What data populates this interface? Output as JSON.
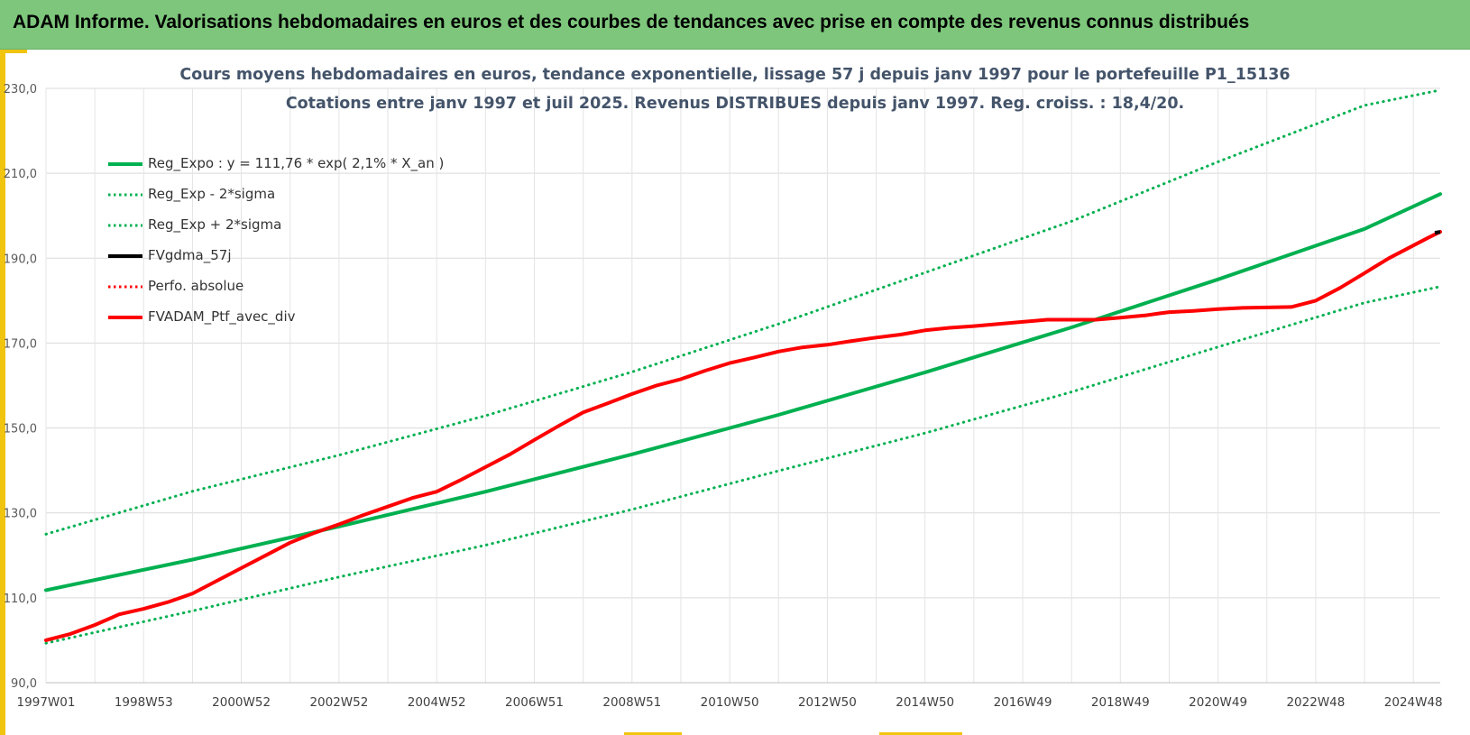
{
  "header": {
    "title": "ADAM Informe. Valorisations hebdomadaires en euros et des courbes de tendances avec prise en compte des revenus connus distribués"
  },
  "colors": {
    "banner": "#7dc67b",
    "accent": "#f1c40f",
    "trend": "#00b050",
    "portfolio": "#ff0000",
    "average": "#000000",
    "grid": "#d9d9d9",
    "title": "#44546a"
  },
  "chart_data": {
    "type": "line",
    "title_line1": "Cours moyens hebdomadaires  en euros, tendance exponentielle, lissage 57 j depuis janv 1997 pour le portefeuille P1_15136",
    "title_line2": "Cotations entre janv 1997 et juil 2025. Revenus DISTRIBUES depuis janv 1997. Reg. croiss. : 18,4/20.",
    "xlabel": "",
    "ylabel": "",
    "x_range": [
      1997.0,
      2025.55
    ],
    "ylim": [
      90,
      230
    ],
    "y_ticks": [
      90,
      110,
      130,
      150,
      170,
      190,
      210,
      230
    ],
    "y_tick_labels": [
      "90,0",
      "110,0",
      "130,0",
      "150,0",
      "170,0",
      "190,0",
      "210,0",
      "230,0"
    ],
    "x_ticks": [
      1997.0,
      1999.0,
      2001.0,
      2003.0,
      2005.0,
      2007.0,
      2009.0,
      2011.0,
      2013.0,
      2015.0,
      2017.0,
      2019.0,
      2021.0,
      2023.0,
      2025.0
    ],
    "x_tick_labels": [
      "1997W01",
      "1998W53",
      "2000W52",
      "2002W52",
      "2004W52",
      "2006W51",
      "2008W51",
      "2010W50",
      "2012W50",
      "2014W50",
      "2016W49",
      "2018W49",
      "2020W49",
      "2022W48",
      "2024W48"
    ],
    "grid": true,
    "legend_position": "top-left",
    "legend": [
      {
        "label": "Reg_Expo : y = 111,76 * exp( 2,1% *  X_an )",
        "color": "#00b050",
        "style": "solid"
      },
      {
        "label": "Reg_Exp - 2*sigma",
        "color": "#00b050",
        "style": "dotted"
      },
      {
        "label": "Reg_Exp + 2*sigma",
        "color": "#00b050",
        "style": "dotted"
      },
      {
        "label": "FVgdma_57j",
        "color": "#000000",
        "style": "solid"
      },
      {
        "label": "Perfo. absolue",
        "color": "#ff0000",
        "style": "dotted"
      },
      {
        "label": "FVADAM_Ptf_avec_div",
        "color": "#ff0000",
        "style": "solid"
      }
    ],
    "series": [
      {
        "name": "Reg_Expo : y = 111,76 * exp( 2,1% *  X_an )",
        "color": "#00b050",
        "style": "solid",
        "x": [
          1997.0,
          2000.0,
          2003.0,
          2006.0,
          2009.0,
          2012.0,
          2015.0,
          2018.0,
          2021.0,
          2024.0,
          2025.55
        ],
        "y": [
          111.8,
          119.0,
          126.8,
          135.0,
          143.8,
          153.1,
          163.1,
          173.7,
          185.0,
          196.9,
          205.1
        ]
      },
      {
        "name": "Reg_Exp - 2*sigma",
        "color": "#00b050",
        "style": "dotted",
        "x": [
          1997.0,
          2000.0,
          2003.0,
          2006.0,
          2009.0,
          2012.0,
          2015.0,
          2018.0,
          2021.0,
          2024.0,
          2025.55
        ],
        "y": [
          99.3,
          106.9,
          114.9,
          122.4,
          130.8,
          139.9,
          148.8,
          158.5,
          169.1,
          179.5,
          183.3
        ]
      },
      {
        "name": "Reg_Exp + 2*sigma",
        "color": "#00b050",
        "style": "dotted",
        "x": [
          1997.0,
          2000.0,
          2003.0,
          2006.0,
          2009.0,
          2012.0,
          2015.0,
          2018.0,
          2021.0,
          2024.0,
          2025.55
        ],
        "y": [
          125.0,
          135.1,
          143.6,
          152.9,
          163.2,
          174.5,
          186.6,
          198.7,
          212.7,
          226.0,
          229.6
        ]
      },
      {
        "name": "FVADAM_Ptf_avec_div",
        "color": "#ff0000",
        "style": "solid",
        "x": [
          1997.0,
          1997.5,
          1998.0,
          1998.5,
          1999.0,
          1999.5,
          2000.0,
          2000.5,
          2001.0,
          2001.5,
          2002.0,
          2002.5,
          2003.0,
          2003.5,
          2004.0,
          2004.5,
          2005.0,
          2005.5,
          2006.0,
          2006.5,
          2007.0,
          2007.5,
          2008.0,
          2008.5,
          2009.0,
          2009.5,
          2010.0,
          2010.5,
          2011.0,
          2011.5,
          2012.0,
          2012.5,
          2013.0,
          2013.5,
          2014.0,
          2014.5,
          2015.0,
          2015.5,
          2016.0,
          2016.5,
          2017.0,
          2017.5,
          2018.0,
          2018.5,
          2019.0,
          2019.5,
          2019.8,
          2020.0,
          2020.5,
          2021.0,
          2021.5,
          2022.0,
          2022.5,
          2023.0,
          2023.5,
          2024.0,
          2024.5,
          2025.0,
          2025.3,
          2025.55
        ],
        "y": [
          100.0,
          101.5,
          103.6,
          106.1,
          107.4,
          109.0,
          111.0,
          114.0,
          117.0,
          120.0,
          123.0,
          125.3,
          127.3,
          129.5,
          131.5,
          133.5,
          135.0,
          137.8,
          140.8,
          143.8,
          147.2,
          150.5,
          153.7,
          155.8,
          158.0,
          160.0,
          161.5,
          163.5,
          165.3,
          166.6,
          168.0,
          169.0,
          169.6,
          170.5,
          171.3,
          172.0,
          173.0,
          173.6,
          174.0,
          174.5,
          175.0,
          175.5,
          175.5,
          175.5,
          176.0,
          176.5,
          177.0,
          177.3,
          177.6,
          178.0,
          178.3,
          178.4,
          178.5,
          180.0,
          183.0,
          186.5,
          190.0,
          193.0,
          194.8,
          196.2
        ]
      }
    ]
  }
}
